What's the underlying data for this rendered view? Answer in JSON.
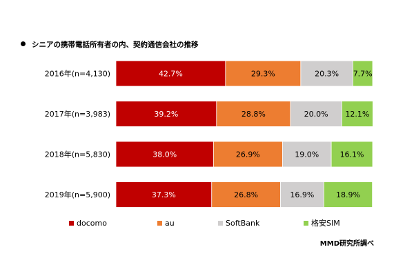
{
  "title": "シニアの携帯電話所有者の内、契約通信会社の推移",
  "source": "MMD研究所調べ",
  "chart_data": {
    "type": "bar",
    "orientation": "horizontal",
    "stacked": true,
    "percent_stacked": true,
    "categories": [
      "2016年(n=4,130)",
      "2017年(n=3,983)",
      "2018年(n=5,830)",
      "2019年(n=5,900)"
    ],
    "series": [
      {
        "name": "docomo",
        "color": "#c00000",
        "values": [
          42.7,
          39.2,
          38.0,
          37.3
        ],
        "labels": [
          "42.7%",
          "39.2%",
          "38.0%",
          "37.3%"
        ]
      },
      {
        "name": "au",
        "color": "#ed7d31",
        "values": [
          29.3,
          28.8,
          26.9,
          26.8
        ],
        "labels": [
          "29.3%",
          "28.8%",
          "26.9%",
          "26.8%"
        ]
      },
      {
        "name": "SoftBank",
        "color": "#d0cece",
        "values": [
          20.3,
          20.0,
          19.0,
          16.9
        ],
        "labels": [
          "20.3%",
          "20.0%",
          "19.0%",
          "16.9%"
        ]
      },
      {
        "name": "格安SIM",
        "color": "#92d050",
        "values": [
          7.7,
          12.1,
          16.1,
          18.9
        ],
        "labels": [
          "7.7%",
          "12.1%",
          "16.1%",
          "18.9%"
        ]
      }
    ],
    "xlim": [
      0,
      100
    ],
    "legend_position": "bottom",
    "grid": false
  }
}
